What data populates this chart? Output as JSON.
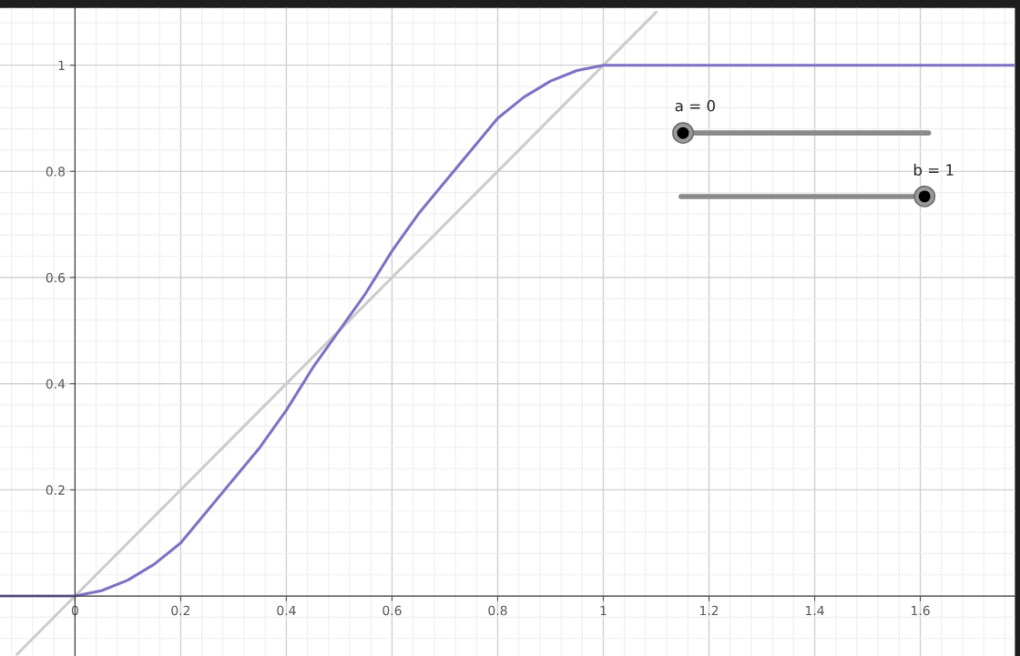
{
  "chart_data": {
    "type": "line",
    "xlim": [
      -0.142,
      1.779
    ],
    "ylim": [
      -0.113,
      1.108
    ],
    "xticks": [
      0,
      0.2,
      0.4,
      0.6,
      0.8,
      1,
      1.2,
      1.4,
      1.6
    ],
    "yticks": [
      0.2,
      0.4,
      0.6,
      0.8,
      1
    ],
    "grid": true,
    "series": [
      {
        "color": "#cccccc",
        "x": [
          -0.11,
          1.1
        ],
        "values": [
          -0.11,
          1.1
        ]
      },
      {
        "color": "#7b72c4",
        "x": [
          -0.142,
          0,
          0.05,
          0.1,
          0.15,
          0.2,
          0.25,
          0.3,
          0.35,
          0.4,
          0.45,
          0.5,
          0.55,
          0.6,
          0.65,
          0.7,
          0.75,
          0.8,
          0.85,
          0.9,
          0.95,
          1,
          1.779
        ],
        "values": [
          0,
          0,
          0.01,
          0.03,
          0.06,
          0.1,
          0.16,
          0.22,
          0.28,
          0.35,
          0.43,
          0.5,
          0.57,
          0.65,
          0.72,
          0.78,
          0.84,
          0.9,
          0.94,
          0.97,
          0.99,
          1,
          1
        ]
      }
    ],
    "annotations": [
      "a = 0",
      "b = 1"
    ]
  }
}
